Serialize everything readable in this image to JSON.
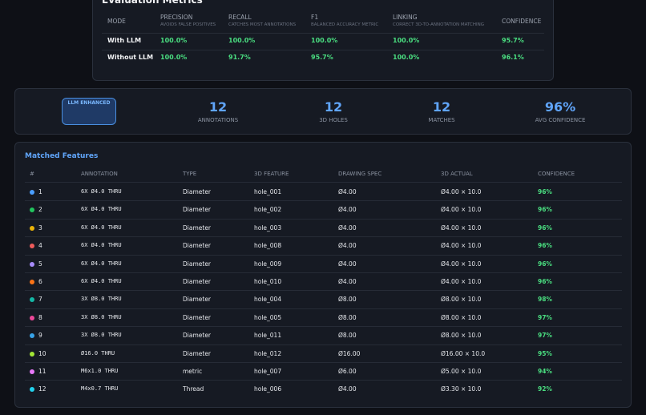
{
  "metrics": {
    "title": "Evaluation Metrics",
    "columns": [
      {
        "label": "MODE"
      },
      {
        "label": "PRECISION",
        "sub": "AVOIDS FALSE POSITIVES"
      },
      {
        "label": "RECALL",
        "sub": "CATCHES MOST ANNOTATIONS"
      },
      {
        "label": "F1",
        "sub": "BALANCED ACCURACY METRIC"
      },
      {
        "label": "LINKING",
        "sub": "CORRECT 3D-TO-ANNOTATION MATCHING"
      },
      {
        "label": "CONFIDENCE"
      }
    ],
    "rows": [
      [
        "With LLM",
        "100.0%",
        "100.0%",
        "100.0%",
        "100.0%",
        "95.7%"
      ],
      [
        "Without LLM",
        "100.0%",
        "91.7%",
        "95.7%",
        "100.0%",
        "96.1%"
      ]
    ]
  },
  "summary": {
    "badge": "LLM ENHANCED",
    "stats": [
      {
        "value": "12",
        "label": "ANNOTATIONS"
      },
      {
        "value": "12",
        "label": "3D HOLES"
      },
      {
        "value": "12",
        "label": "MATCHES"
      },
      {
        "value": "96%",
        "label": "AVG CONFIDENCE"
      }
    ]
  },
  "features": {
    "title": "Matched Features",
    "headers": [
      "#",
      "ANNOTATION",
      "TYPE",
      "3D FEATURE",
      "DRAWING SPEC",
      "3D ACTUAL",
      "CONFIDENCE"
    ],
    "dot_colors": [
      "#4a9eff",
      "#22c55e",
      "#eab308",
      "#ef5b5b",
      "#a78bfa",
      "#f97316",
      "#14b8a6",
      "#ec4899",
      "#38a3e8",
      "#a3e635",
      "#e879f9",
      "#22d3ee"
    ],
    "rows": [
      [
        "1",
        "6X Ø4.0 THRU",
        "Diameter",
        "hole_001",
        "Ø4.00",
        "Ø4.00 × 10.0",
        "96%"
      ],
      [
        "2",
        "6X Ø4.0 THRU",
        "Diameter",
        "hole_002",
        "Ø4.00",
        "Ø4.00 × 10.0",
        "96%"
      ],
      [
        "3",
        "6X Ø4.0 THRU",
        "Diameter",
        "hole_003",
        "Ø4.00",
        "Ø4.00 × 10.0",
        "96%"
      ],
      [
        "4",
        "6X Ø4.0 THRU",
        "Diameter",
        "hole_008",
        "Ø4.00",
        "Ø4.00 × 10.0",
        "96%"
      ],
      [
        "5",
        "6X Ø4.0 THRU",
        "Diameter",
        "hole_009",
        "Ø4.00",
        "Ø4.00 × 10.0",
        "96%"
      ],
      [
        "6",
        "6X Ø4.0 THRU",
        "Diameter",
        "hole_010",
        "Ø4.00",
        "Ø4.00 × 10.0",
        "96%"
      ],
      [
        "7",
        "3X Ø8.0 THRU",
        "Diameter",
        "hole_004",
        "Ø8.00",
        "Ø8.00 × 10.0",
        "98%"
      ],
      [
        "8",
        "3X Ø8.0 THRU",
        "Diameter",
        "hole_005",
        "Ø8.00",
        "Ø8.00 × 10.0",
        "97%"
      ],
      [
        "9",
        "3X Ø8.0 THRU",
        "Diameter",
        "hole_011",
        "Ø8.00",
        "Ø8.00 × 10.0",
        "97%"
      ],
      [
        "10",
        "Ø16.0 THRU",
        "Diameter",
        "hole_012",
        "Ø16.00",
        "Ø16.00 × 10.0",
        "95%"
      ],
      [
        "11",
        "M6x1.0 THRU",
        "metric",
        "hole_007",
        "Ø6.00",
        "Ø5.00 × 10.0",
        "94%"
      ],
      [
        "12",
        "M4x0.7 THRU",
        "Thread",
        "hole_006",
        "Ø4.00",
        "Ø3.30 × 10.0",
        "92%"
      ]
    ]
  }
}
